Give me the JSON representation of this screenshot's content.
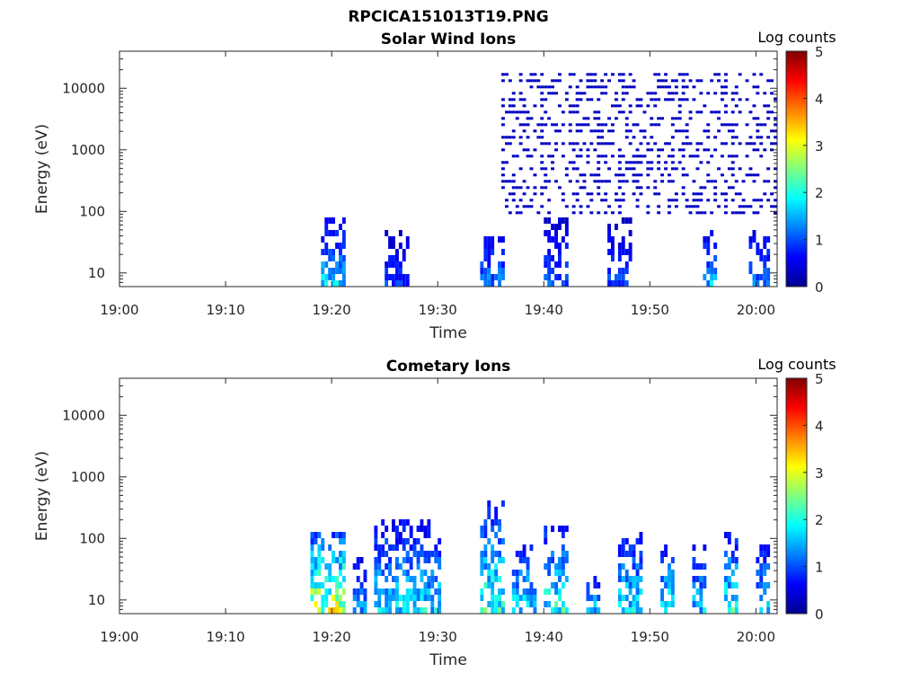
{
  "figure_title": "RPCICA151013T19.PNG",
  "colorbar": {
    "colormap": "jet",
    "min": 0,
    "max": 5
  },
  "chart_data": [
    {
      "type": "heatmap",
      "title": "Solar Wind Ions",
      "xlabel": "Time",
      "ylabel": "Energy (eV)",
      "xlim": [
        "19:00",
        "20:02"
      ],
      "ylim": [
        6,
        40000
      ],
      "yscale": "log",
      "x_ticks": [
        "19:00",
        "19:10",
        "19:20",
        "19:30",
        "19:40",
        "19:50",
        "20:00"
      ],
      "y_ticks": [
        "10",
        "100",
        "1000",
        "10000"
      ],
      "colorbar_label": "Log counts",
      "colorbar_ticks": [
        "0",
        "1",
        "2",
        "3",
        "4",
        "5"
      ],
      "grid": false,
      "bursts": [
        {
          "start": "19:19",
          "end": "19:21",
          "emin": 6,
          "emax": 80,
          "peak": 2.1
        },
        {
          "start": "19:25",
          "end": "19:27",
          "emin": 6,
          "emax": 50,
          "peak": 1.2
        },
        {
          "start": "19:34",
          "end": "19:36",
          "emin": 6,
          "emax": 60,
          "peak": 1.6
        },
        {
          "start": "19:40",
          "end": "19:42",
          "emin": 6,
          "emax": 90,
          "peak": 1.3
        },
        {
          "start": "19:46",
          "end": "19:48",
          "emin": 6,
          "emax": 80,
          "peak": 1.2
        },
        {
          "start": "19:55",
          "end": "19:56",
          "emin": 6,
          "emax": 50,
          "peak": 2.0
        },
        {
          "start": "19:59",
          "end": "20:01",
          "emin": 6,
          "emax": 60,
          "peak": 1.6
        }
      ],
      "background_band": {
        "start": "19:36",
        "end": "20:02",
        "emin": 100,
        "emax": 20000,
        "level": 0.3
      }
    },
    {
      "type": "heatmap",
      "title": "Cometary Ions",
      "xlabel": "Time",
      "ylabel": "Energy (eV)",
      "xlim": [
        "19:00",
        "20:02"
      ],
      "ylim": [
        6,
        40000
      ],
      "yscale": "log",
      "x_ticks": [
        "19:00",
        "19:10",
        "19:20",
        "19:30",
        "19:40",
        "19:50",
        "20:00"
      ],
      "y_ticks": [
        "10",
        "100",
        "1000",
        "10000"
      ],
      "colorbar_label": "Log counts",
      "colorbar_ticks": [
        "0",
        "1",
        "2",
        "3",
        "4",
        "5"
      ],
      "grid": false,
      "bursts": [
        {
          "start": "19:18",
          "end": "19:21",
          "emin": 6,
          "emax": 150,
          "peak": 3.6
        },
        {
          "start": "19:22",
          "end": "19:23",
          "emin": 6,
          "emax": 60,
          "peak": 1.8
        },
        {
          "start": "19:24",
          "end": "19:27",
          "emin": 6,
          "emax": 250,
          "peak": 2.2
        },
        {
          "start": "19:27",
          "end": "19:30",
          "emin": 6,
          "emax": 250,
          "peak": 2.2
        },
        {
          "start": "19:34",
          "end": "19:36",
          "emin": 6,
          "emax": 500,
          "peak": 2.6
        },
        {
          "start": "19:37",
          "end": "19:39",
          "emin": 6,
          "emax": 100,
          "peak": 2.3
        },
        {
          "start": "19:40",
          "end": "19:42",
          "emin": 6,
          "emax": 200,
          "peak": 2.5
        },
        {
          "start": "19:44",
          "end": "19:45",
          "emin": 6,
          "emax": 30,
          "peak": 2.3
        },
        {
          "start": "19:47",
          "end": "19:49",
          "emin": 6,
          "emax": 150,
          "peak": 2.3
        },
        {
          "start": "19:51",
          "end": "19:52",
          "emin": 6,
          "emax": 100,
          "peak": 2.4
        },
        {
          "start": "19:54",
          "end": "19:55",
          "emin": 6,
          "emax": 80,
          "peak": 2.2
        },
        {
          "start": "19:57",
          "end": "19:58",
          "emin": 6,
          "emax": 150,
          "peak": 2.6
        },
        {
          "start": "20:00",
          "end": "20:01",
          "emin": 6,
          "emax": 80,
          "peak": 2.4
        }
      ],
      "background_band": null
    }
  ]
}
